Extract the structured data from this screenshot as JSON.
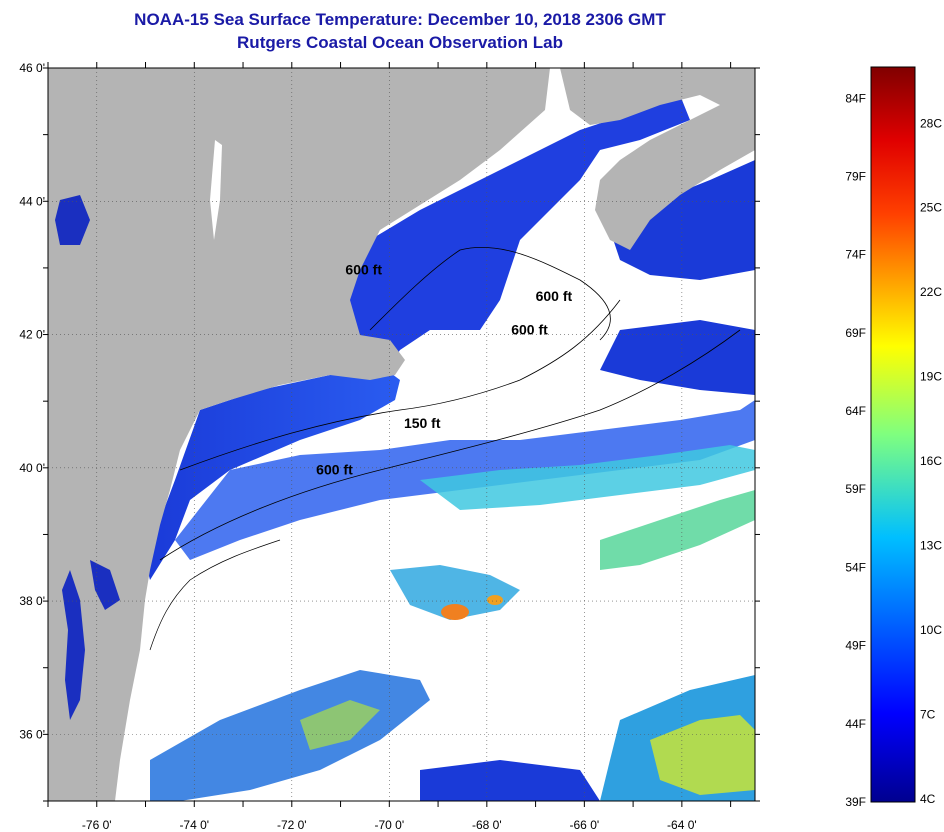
{
  "header": {
    "title": "NOAA-15 Sea Surface Temperature:  December 10, 2018 2306 GMT",
    "subtitle": "Rutgers Coastal Ocean Observation Lab"
  },
  "map": {
    "lat_ticks": [
      "46 0'",
      "44 0'",
      "42 0'",
      "40 0'",
      "38 0'",
      "36 0'"
    ],
    "lon_ticks": [
      "-76 0'",
      "-74 0'",
      "-72 0'",
      "-70 0'",
      "-68 0'",
      "-66 0'",
      "-64 0'"
    ],
    "lat_values": [
      46,
      44,
      42,
      40,
      38,
      36
    ],
    "lon_values": [
      -76,
      -74,
      -72,
      -70,
      -68,
      -66,
      -64
    ],
    "lat_range": [
      35,
      46
    ],
    "lon_range": [
      -77,
      -62.5
    ],
    "contour_labels": [
      {
        "text": "600 ft",
        "lon": -70.9,
        "lat": 42.9
      },
      {
        "text": "600 ft",
        "lon": -67.0,
        "lat": 42.5
      },
      {
        "text": "600 ft",
        "lon": -67.5,
        "lat": 42.0
      },
      {
        "text": "150 ft",
        "lon": -69.7,
        "lat": 40.6
      },
      {
        "text": "600 ft",
        "lon": -71.5,
        "lat": 39.9
      }
    ],
    "colors": {
      "land": "#b4b4b4",
      "no_data": "#ffffff",
      "water_cold": "#1030e0"
    }
  },
  "colorbar": {
    "fahrenheit": [
      "84F",
      "79F",
      "74F",
      "69F",
      "64F",
      "59F",
      "54F",
      "49F",
      "44F",
      "39F"
    ],
    "celsius": [
      "28C",
      "25C",
      "22C",
      "19C",
      "16C",
      "13C",
      "10C",
      "7C",
      "4C"
    ],
    "range_f": [
      39,
      86
    ]
  }
}
